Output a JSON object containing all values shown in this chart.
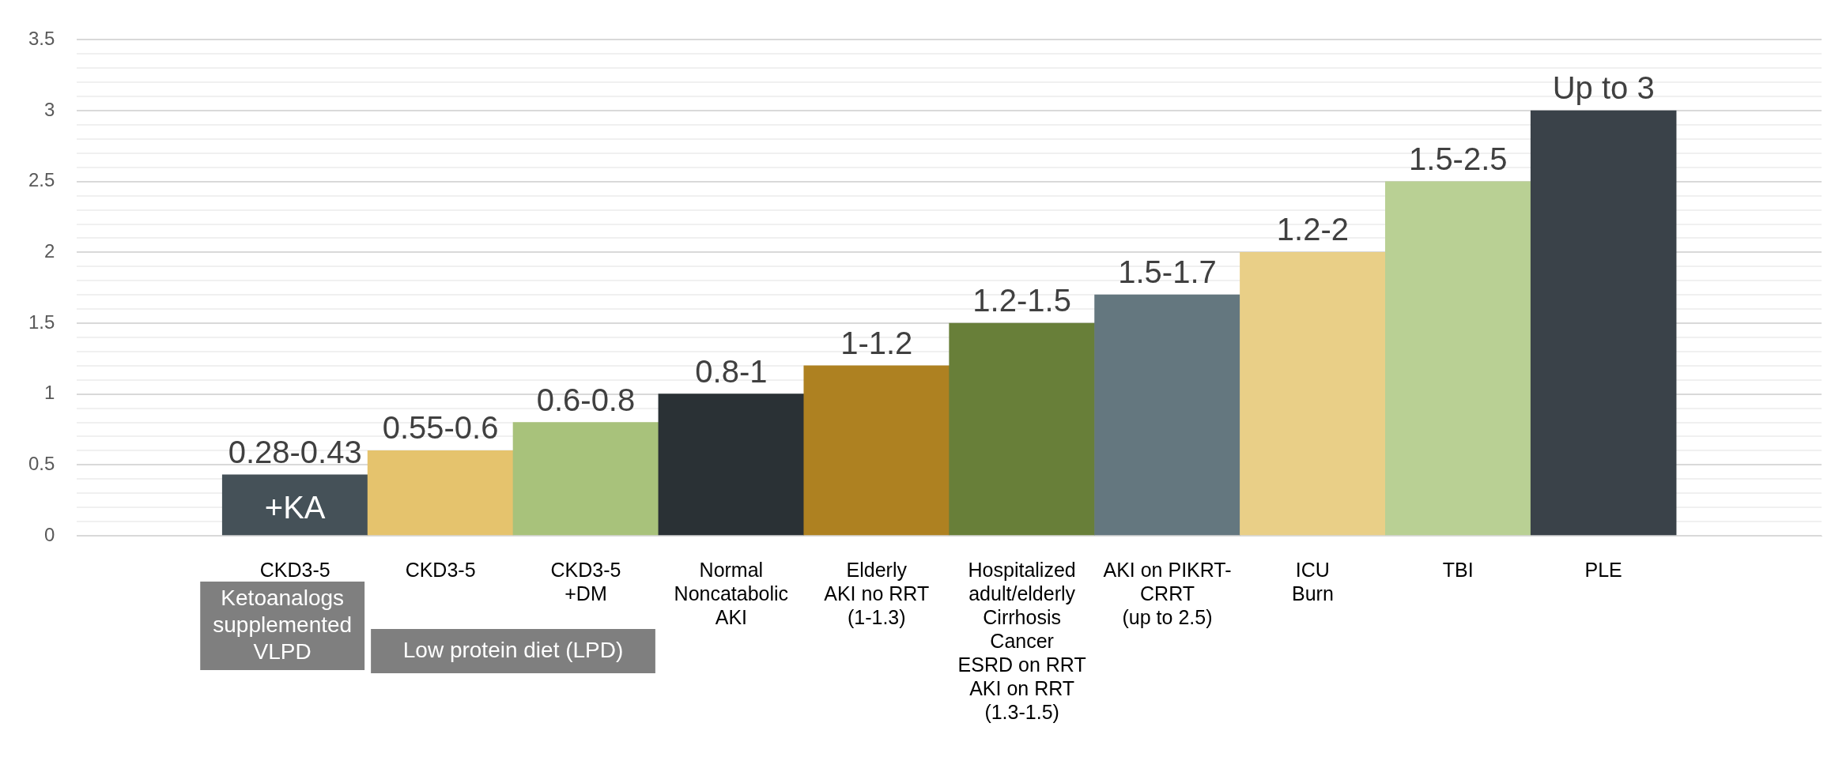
{
  "chart_data": {
    "type": "bar",
    "categories": [
      null,
      "CKD3-5",
      "CKD3-5",
      "CKD3-5\n+DM",
      "Normal\nNoncatabolic\nAKI",
      "Elderly\nAKI no RRT\n(1-1.3)",
      "Hospitalized\nadult/elderly\nCirrhosis\nCancer\nESRD on RRT\nAKI on RRT\n(1.3-1.5)",
      "AKI on PIKRT-\nCRRT\n(up to 2.5)",
      "ICU\nBurn",
      "TBI",
      "PLE",
      null
    ],
    "values": [
      null,
      0.43,
      0.6,
      0.8,
      1,
      1.2,
      1.5,
      1.7,
      2,
      2.5,
      3,
      null
    ],
    "colors": [
      "#455158",
      "#455158",
      "#e5c36d",
      "#a8c27b",
      "#2a3135",
      "#ae8121",
      "#687f39",
      "#64777f",
      "#e9cf87",
      "#b9d094",
      "#3a4249",
      "#3a4249"
    ],
    "value_labels": [
      null,
      "0.28-0.43",
      "0.55-0.6",
      "0.6-0.8",
      "0.8-1",
      "1-1.2",
      "1.2-1.5",
      "1.5-1.7",
      "1.2-2",
      "1.5-2.5",
      "Up to 3",
      null
    ],
    "ylim": [
      0,
      3.5
    ],
    "yticks": [
      0,
      {
        "value": 0.1,
        "label": null
      },
      {
        "value": 0.2,
        "label": null
      },
      {
        "value": 0.3,
        "label": null
      },
      {
        "value": 0.4,
        "label": null
      },
      0.5,
      {
        "value": 0.6,
        "label": null
      },
      {
        "value": 0.7,
        "label": null
      },
      {
        "value": 0.8,
        "label": null
      },
      {
        "value": 0.9,
        "label": null
      },
      1,
      {
        "value": 1.1,
        "label": null
      },
      {
        "value": 1.2,
        "label": null
      },
      {
        "value": 1.3,
        "label": null
      },
      {
        "value": 1.4,
        "label": null
      },
      1.5,
      {
        "value": 1.6,
        "label": null
      },
      {
        "value": 1.7,
        "label": null
      },
      {
        "value": 1.8,
        "label": null
      },
      {
        "value": 1.9,
        "label": null
      },
      2,
      {
        "value": 2.1,
        "label": null
      },
      {
        "value": 2.2,
        "label": null
      },
      {
        "value": 2.3,
        "label": null
      },
      {
        "value": 2.4,
        "label": null
      },
      2.5,
      {
        "value": 2.6,
        "label": null
      },
      {
        "value": 2.7,
        "label": null
      },
      {
        "value": 2.8,
        "label": null
      },
      {
        "value": 2.9,
        "label": null
      },
      3,
      {
        "value": 3.1,
        "label": null
      },
      {
        "value": 3.2,
        "label": null
      },
      {
        "value": 3.3,
        "label": null
      },
      {
        "value": 3.4,
        "label": null
      },
      3.5
    ],
    "grid": "y",
    "legend": false,
    "annotations": [
      "+KA",
      "Ketoanalogs supplemented VLPD",
      "Low protein diet (LPD)"
    ]
  }
}
